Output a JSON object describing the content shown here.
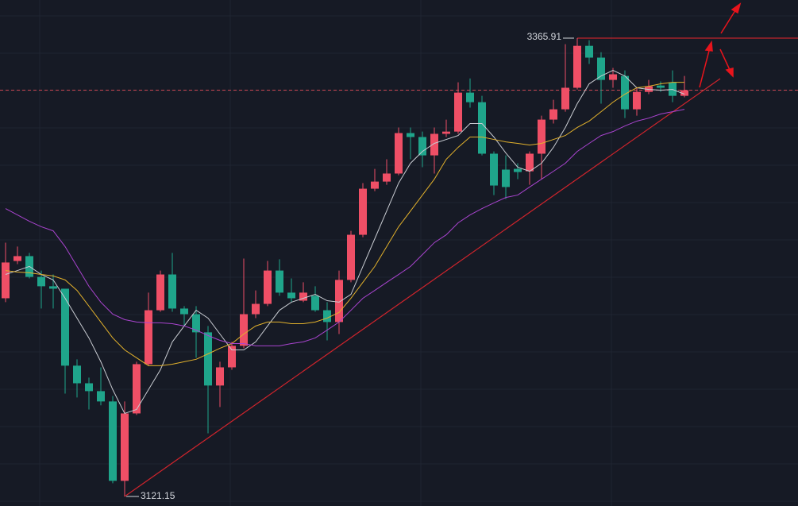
{
  "chart_data": {
    "type": "candlestick",
    "categories": [
      null,
      null,
      null,
      null,
      null,
      null,
      null,
      null,
      null,
      null,
      null,
      null,
      null,
      null,
      null,
      null,
      null,
      null,
      null,
      null,
      null,
      null,
      null,
      null,
      null,
      null,
      null,
      null,
      null,
      null,
      null,
      null,
      null,
      null,
      null,
      null,
      null,
      null,
      null,
      null,
      null,
      null,
      null,
      null,
      null,
      null,
      null,
      null,
      null,
      null,
      null,
      null,
      null,
      null,
      null,
      null,
      null,
      null
    ],
    "open": [
      3227.0,
      3246.9,
      3249.5,
      3238.4,
      3233.4,
      3232.1,
      3191.0,
      3181.6,
      3177.4,
      3171.9,
      3129.5,
      3165.5,
      3191.8,
      3220.6,
      3239.7,
      3221.5,
      3218.5,
      3208.8,
      3180.4,
      3190.1,
      3201.6,
      3218.5,
      3224.0,
      3241.8,
      3230.0,
      3225.7,
      3228.3,
      3220.6,
      3214.3,
      3236.8,
      3260.9,
      3285.5,
      3289.3,
      3293.6,
      3315.2,
      3313.1,
      3303.3,
      3314.8,
      3316.0,
      3336.8,
      3331.7,
      3304.2,
      3295.7,
      3296.1,
      3294.8,
      3304.2,
      3322.4,
      3327.9,
      3339.4,
      3361.8,
      3355.5,
      3343.6,
      3345.7,
      3327.9,
      3337.2,
      3340.6,
      3342.3,
      3335.1
    ],
    "high": [
      3256.7,
      3254.6,
      3251.2,
      3241.8,
      3239.7,
      3232.1,
      3194.4,
      3184.6,
      3190.1,
      3174.8,
      3171.9,
      3193.1,
      3230.0,
      3241.8,
      3251.2,
      3222.8,
      3222.8,
      3212.2,
      3193.1,
      3203.7,
      3248.2,
      3231.2,
      3246.9,
      3247.8,
      3237.6,
      3235.5,
      3233.4,
      3224.9,
      3241.8,
      3263.0,
      3288.5,
      3296.1,
      3301.2,
      3318.2,
      3318.2,
      3316.0,
      3318.2,
      3322.4,
      3342.3,
      3344.4,
      3335.1,
      3305.4,
      3303.3,
      3299.1,
      3305.4,
      3324.5,
      3333.0,
      3362.7,
      3365.91,
      3364.8,
      3358.4,
      3350.0,
      3348.7,
      3339.4,
      3343.6,
      3342.8,
      3348.7,
      3345.7
    ],
    "low": [
      3224.9,
      3245.2,
      3237.6,
      3221.5,
      3221.5,
      3176.1,
      3174.0,
      3167.6,
      3169.8,
      3128.2,
      3121.15,
      3164.7,
      3191.0,
      3219.8,
      3219.8,
      3212.2,
      3195.2,
      3154.9,
      3168.9,
      3188.8,
      3200.3,
      3216.4,
      3222.8,
      3228.3,
      3224.9,
      3224.9,
      3219.8,
      3204.5,
      3207.9,
      3235.5,
      3259.6,
      3284.2,
      3287.6,
      3292.7,
      3301.2,
      3297.0,
      3293.6,
      3313.1,
      3314.8,
      3328.8,
      3303.3,
      3282.1,
      3280.0,
      3290.6,
      3287.6,
      3290.6,
      3320.3,
      3326.6,
      3338.5,
      3352.1,
      3330.9,
      3339.4,
      3323.2,
      3324.5,
      3336.0,
      3337.2,
      3331.7,
      3334.3
    ],
    "close": [
      3246.1,
      3249.5,
      3238.4,
      3233.4,
      3232.1,
      3191.0,
      3181.6,
      3177.4,
      3171.9,
      3129.5,
      3165.5,
      3191.8,
      3220.6,
      3239.7,
      3221.5,
      3218.5,
      3208.8,
      3180.4,
      3190.1,
      3201.6,
      3218.5,
      3224.0,
      3241.8,
      3230.0,
      3227.0,
      3230.0,
      3220.6,
      3214.3,
      3236.8,
      3260.9,
      3285.5,
      3289.3,
      3293.6,
      3315.2,
      3313.1,
      3303.3,
      3314.8,
      3316.0,
      3336.8,
      3331.7,
      3304.2,
      3287.2,
      3286.4,
      3294.4,
      3304.2,
      3322.4,
      3327.9,
      3339.4,
      3361.8,
      3355.5,
      3343.6,
      3346.6,
      3327.9,
      3337.2,
      3340.2,
      3339.4,
      3335.1,
      3338.1
    ],
    "up_color": "#ef4f66",
    "down_color": "#1fa58b",
    "series": [
      {
        "color": "#c9ccd2",
        "values": [
          3239.7,
          3241.8,
          3244.0,
          3239.7,
          3236.8,
          3227.0,
          3216.4,
          3205.8,
          3193.1,
          3178.2,
          3165.5,
          3167.6,
          3178.2,
          3188.8,
          3203.7,
          3212.2,
          3220.6,
          3216.4,
          3207.9,
          3199.4,
          3199.4,
          3203.7,
          3212.2,
          3220.6,
          3224.9,
          3227.0,
          3229.1,
          3225.7,
          3224.9,
          3229.1,
          3244.0,
          3258.8,
          3273.6,
          3288.5,
          3299.1,
          3305.4,
          3309.7,
          3311.8,
          3313.9,
          3320.3,
          3320.3,
          3313.1,
          3304.6,
          3297.0,
          3294.8,
          3299.1,
          3307.6,
          3318.2,
          3330.9,
          3341.5,
          3345.7,
          3348.7,
          3345.7,
          3339.4,
          3338.5,
          3338.1,
          3338.5,
          3336.0
        ]
      },
      {
        "color": "#e2b12c",
        "values": [
          3241.8,
          3241.0,
          3240.6,
          3239.7,
          3238.9,
          3236.8,
          3231.2,
          3222.8,
          3214.3,
          3205.8,
          3199.4,
          3195.2,
          3191.0,
          3191.0,
          3191.8,
          3193.1,
          3194.4,
          3197.3,
          3200.3,
          3202.8,
          3207.9,
          3212.2,
          3214.3,
          3214.3,
          3213.4,
          3213.4,
          3214.3,
          3216.4,
          3219.4,
          3227.0,
          3235.5,
          3244.0,
          3254.6,
          3265.2,
          3273.6,
          3282.1,
          3290.6,
          3301.2,
          3307.6,
          3313.1,
          3313.1,
          3311.8,
          3310.5,
          3309.7,
          3308.8,
          3309.7,
          3311.8,
          3313.9,
          3318.2,
          3321.6,
          3326.6,
          3331.7,
          3336.0,
          3339.4,
          3340.2,
          3341.5,
          3342.3,
          3342.3
        ]
      },
      {
        "color": "#a944cf",
        "values": [
          3274.9,
          3271.5,
          3268.1,
          3265.2,
          3263.0,
          3254.6,
          3244.0,
          3233.4,
          3224.9,
          3218.5,
          3215.6,
          3214.3,
          3213.9,
          3213.9,
          3213.4,
          3212.2,
          3210.0,
          3207.1,
          3204.5,
          3202.8,
          3202.8,
          3201.6,
          3201.6,
          3201.6,
          3202.8,
          3203.7,
          3205.8,
          3210.0,
          3214.3,
          3220.6,
          3227.0,
          3231.2,
          3235.5,
          3239.7,
          3244.0,
          3250.3,
          3256.7,
          3260.9,
          3267.3,
          3271.5,
          3274.9,
          3277.9,
          3280.8,
          3282.1,
          3286.4,
          3290.6,
          3294.8,
          3299.1,
          3305.4,
          3309.7,
          3313.9,
          3316.0,
          3319.0,
          3321.6,
          3323.2,
          3325.4,
          3326.6,
          3327.9
        ]
      }
    ],
    "ylim": [
      3116.06,
      3386.27
    ],
    "grid": true
  }
}
